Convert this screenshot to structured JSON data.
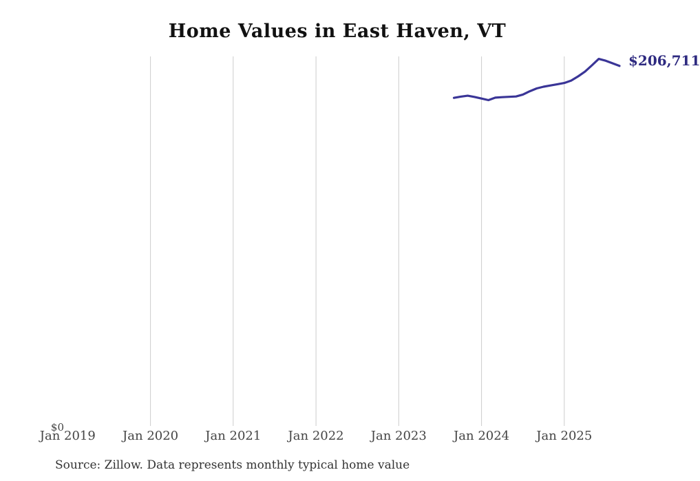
{
  "chart_data": {
    "type": "line",
    "title": "Home Values in East Haven, VT",
    "source_note": "Source: Zillow. Data represents monthly typical home value",
    "last_value_label": "$206,711",
    "y_axis": {
      "zero_label": "$0",
      "min": 0,
      "max_implied": 210700,
      "horizontal_gridlines": false
    },
    "x_ticks": [
      {
        "label": "Jan 2019",
        "date": "2019-01",
        "gridline": false
      },
      {
        "label": "Jan 2020",
        "date": "2020-01",
        "gridline": true
      },
      {
        "label": "Jan 2021",
        "date": "2021-01",
        "gridline": true
      },
      {
        "label": "Jan 2022",
        "date": "2022-01",
        "gridline": true
      },
      {
        "label": "Jan 2023",
        "date": "2023-01",
        "gridline": true
      },
      {
        "label": "Jan 2024",
        "date": "2024-01",
        "gridline": true
      },
      {
        "label": "Jan 2025",
        "date": "2025-01",
        "gridline": true
      }
    ],
    "series": [
      {
        "name": "Monthly typical home value",
        "points": [
          {
            "date": "2023-09",
            "value": 188400
          },
          {
            "date": "2023-10",
            "value": 189100
          },
          {
            "date": "2023-11",
            "value": 189600
          },
          {
            "date": "2023-12",
            "value": 188900
          },
          {
            "date": "2024-01",
            "value": 188000
          },
          {
            "date": "2024-02",
            "value": 187100
          },
          {
            "date": "2024-03",
            "value": 188500
          },
          {
            "date": "2024-04",
            "value": 188800
          },
          {
            "date": "2024-05",
            "value": 189000
          },
          {
            "date": "2024-06",
            "value": 189200
          },
          {
            "date": "2024-07",
            "value": 190300
          },
          {
            "date": "2024-08",
            "value": 192200
          },
          {
            "date": "2024-09",
            "value": 193800
          },
          {
            "date": "2024-10",
            "value": 194800
          },
          {
            "date": "2024-11",
            "value": 195500
          },
          {
            "date": "2024-12",
            "value": 196200
          },
          {
            "date": "2025-01",
            "value": 196900
          },
          {
            "date": "2025-02",
            "value": 198300
          },
          {
            "date": "2025-03",
            "value": 200700
          },
          {
            "date": "2025-04",
            "value": 203400
          },
          {
            "date": "2025-05",
            "value": 207000
          },
          {
            "date": "2025-06",
            "value": 210700
          },
          {
            "date": "2025-07",
            "value": 209700
          },
          {
            "date": "2025-08",
            "value": 208200
          },
          {
            "date": "2025-09",
            "value": 206711
          }
        ]
      }
    ],
    "colors": {
      "line": "#3a3597",
      "last_value_label": "#2e2a80",
      "gridline": "#cccccc",
      "axis_label": "#444444",
      "title": "#111111",
      "source": "#333333",
      "background": "#ffffff"
    }
  }
}
